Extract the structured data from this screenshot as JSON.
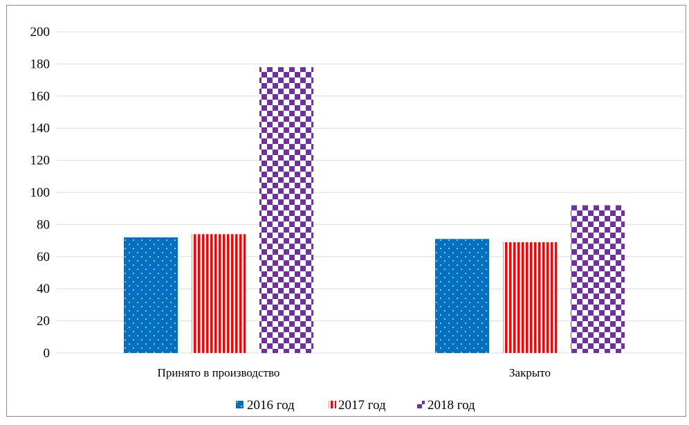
{
  "chart_data": {
    "type": "bar",
    "title": "",
    "xlabel": "",
    "ylabel": "",
    "categories": [
      "Принято в производство",
      "Закрыто"
    ],
    "series": [
      {
        "name": "2016 год",
        "values": [
          72,
          71
        ],
        "color": "#0070C0",
        "pattern": "dots"
      },
      {
        "name": "2017 год",
        "values": [
          74,
          69
        ],
        "color": "#FF0000",
        "pattern": "vertical-stripes"
      },
      {
        "name": "2018 год",
        "values": [
          178,
          92
        ],
        "color": "#7030A0",
        "pattern": "checker"
      }
    ],
    "ylim": [
      0,
      200
    ],
    "yticks": [
      0,
      20,
      40,
      60,
      80,
      100,
      120,
      140,
      160,
      180,
      200
    ],
    "grid": true,
    "legend_position": "bottom"
  }
}
